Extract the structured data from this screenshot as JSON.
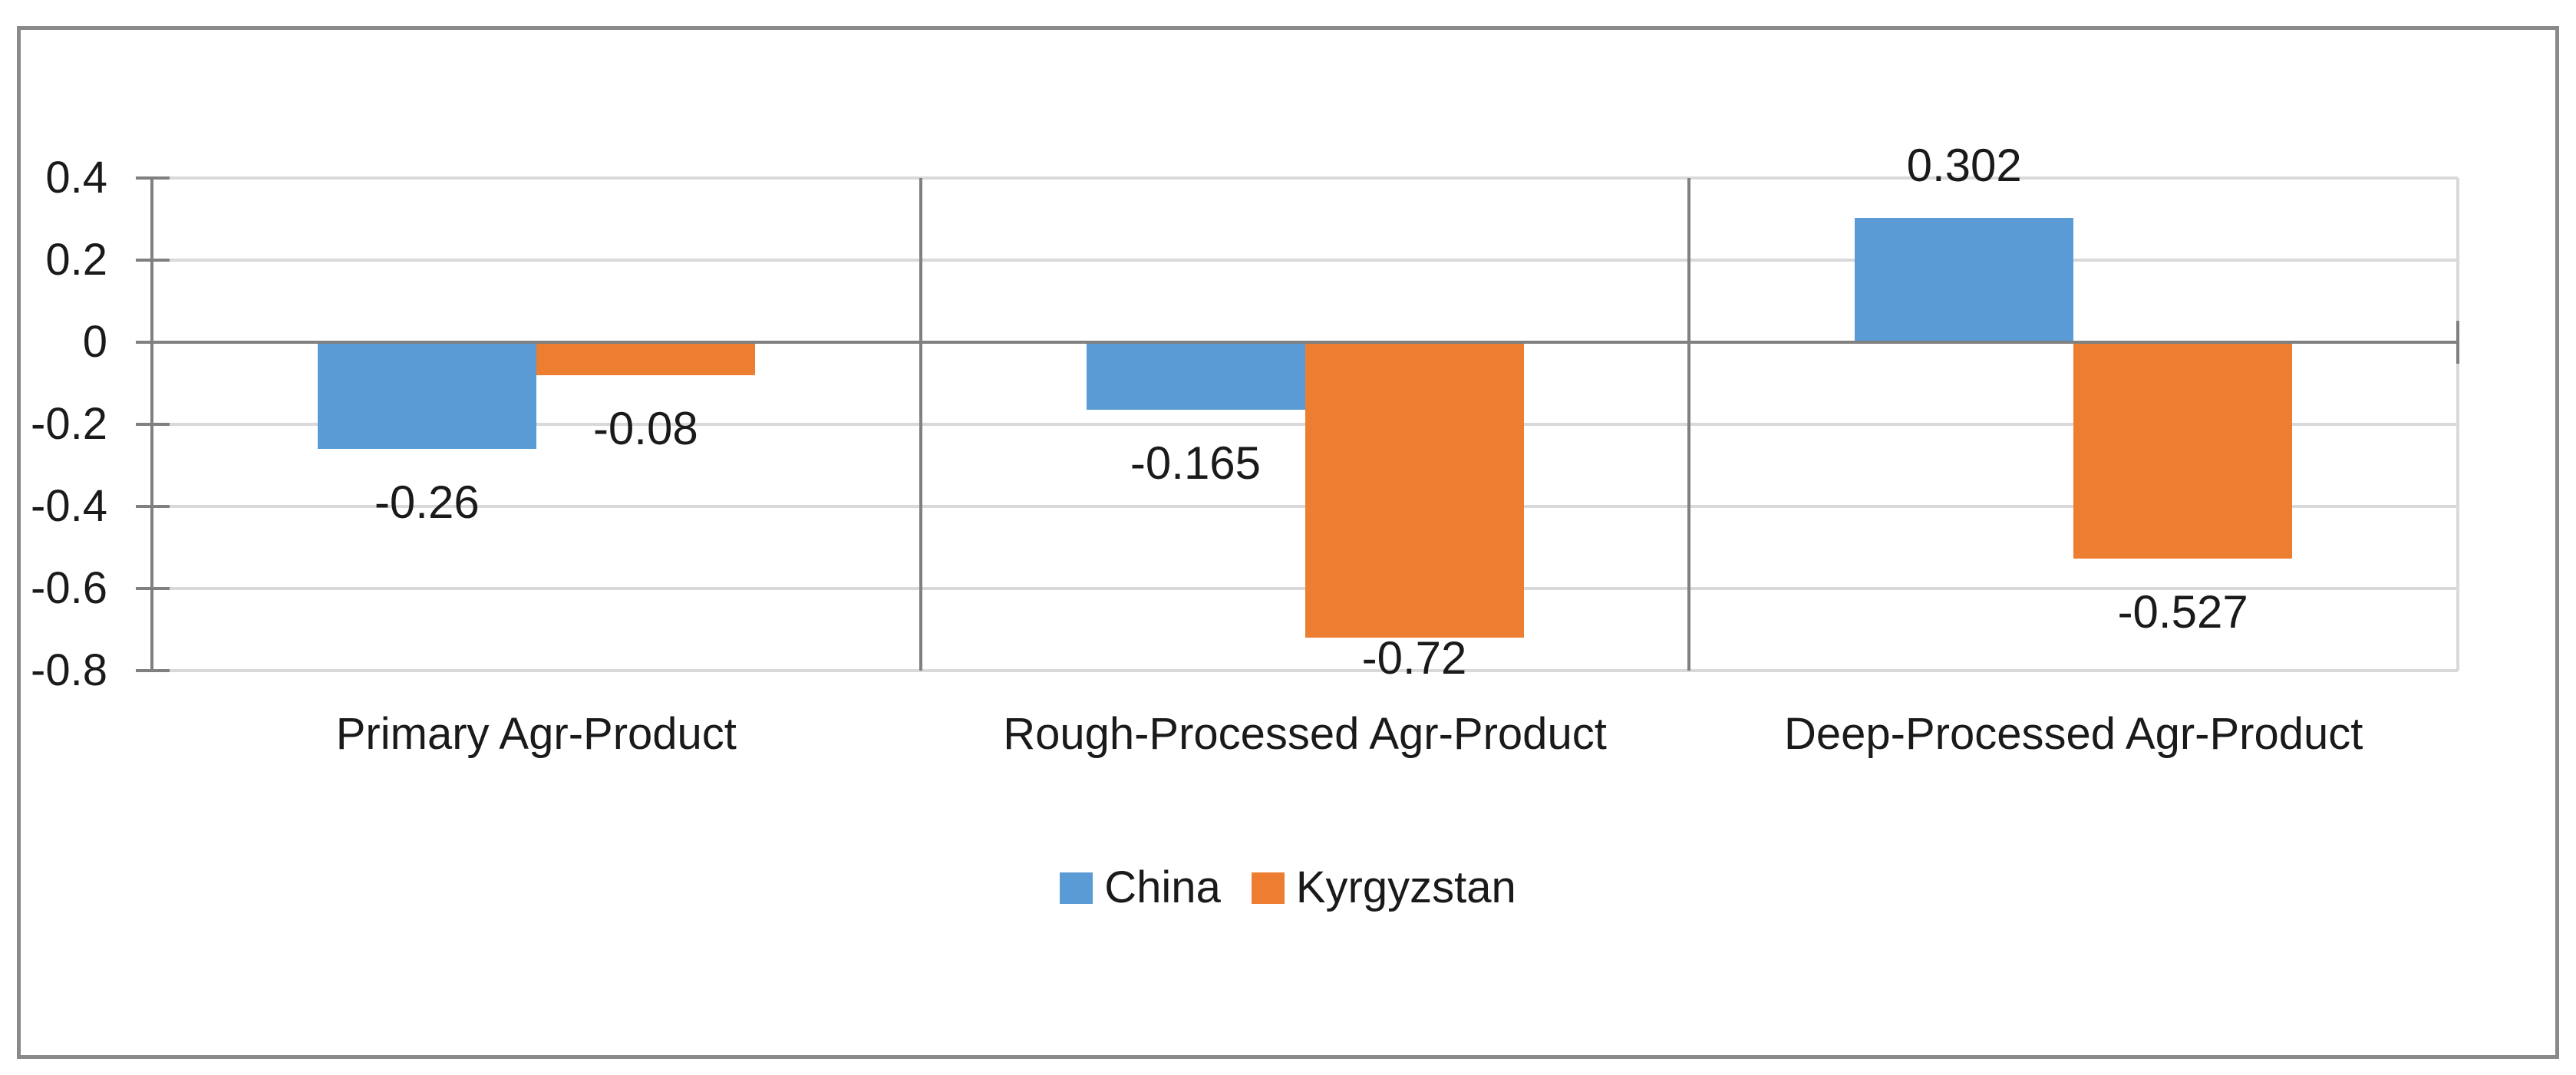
{
  "chart_data": {
    "type": "bar",
    "title": "",
    "categories": [
      "Primary Agr-Product",
      "Rough-Processed Agr-Product",
      "Deep-Processed Agr-Product"
    ],
    "series": [
      {
        "name": "China",
        "color": "#5B9BD5",
        "values": [
          -0.26,
          -0.165,
          0.302
        ],
        "labels": [
          "-0.26",
          "-0.165",
          "0.302"
        ]
      },
      {
        "name": "Kyrgyzstan",
        "color": "#ED7D31",
        "values": [
          -0.08,
          -0.72,
          -0.527
        ],
        "labels": [
          "-0.08",
          "-0.72",
          "-0.527"
        ]
      }
    ],
    "y_axis": {
      "min": -0.8,
      "max": 0.4,
      "tick_step": 0.2,
      "ticks": [
        0.4,
        0.2,
        0,
        -0.2,
        -0.4,
        -0.6,
        -0.8
      ],
      "tick_labels": [
        "0.4",
        "0.2",
        "0",
        "-0.2",
        "-0.4",
        "-0.6",
        "-0.8"
      ]
    },
    "xlabel": "",
    "ylabel": "",
    "grid": true,
    "legend_position": "bottom",
    "colors": {
      "gridline": "#D9D9D9",
      "axis": "#808080",
      "chart_border": "#8A8A8A",
      "text": "#1A1A1A"
    }
  }
}
